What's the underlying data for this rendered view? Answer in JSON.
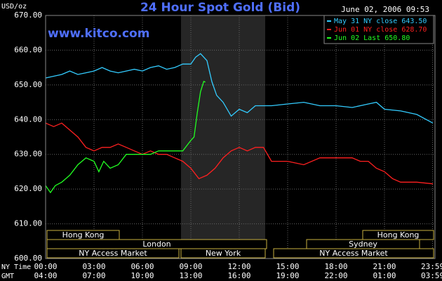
{
  "chart_data": {
    "type": "line",
    "title": "24 Hour Spot Gold (Bid)",
    "y_label": "USD/oz",
    "watermark": "www.kitco.com",
    "timestamp": "June 02, 2006 09:53",
    "x_row_labels": [
      "NY Time",
      "GMT"
    ],
    "sessions": [
      "Hong Kong",
      "London",
      "NY Access Market",
      "New York",
      "Hong Kong",
      "Sydney",
      "NY Access Market"
    ],
    "xlim": [
      0,
      24
    ],
    "xticks": [
      {
        "value": 0,
        "label": "00:00"
      },
      {
        "value": 3,
        "label": "03:00"
      },
      {
        "value": 6,
        "label": "06:00"
      },
      {
        "value": 9,
        "label": "09:00"
      },
      {
        "value": 12,
        "label": "12:00"
      },
      {
        "value": 15,
        "label": "15:00"
      },
      {
        "value": 18,
        "label": "18:00"
      },
      {
        "value": 21,
        "label": "21:00"
      },
      {
        "value": 23.98,
        "label": "23:59"
      }
    ],
    "x2ticks": [
      {
        "value": 0,
        "label": "04:00"
      },
      {
        "value": 3,
        "label": "07:00"
      },
      {
        "value": 6,
        "label": "10:00"
      },
      {
        "value": 9,
        "label": "13:00"
      },
      {
        "value": 12,
        "label": "16:00"
      },
      {
        "value": 15,
        "label": "19:00"
      },
      {
        "value": 18,
        "label": "22:00"
      },
      {
        "value": 21,
        "label": "01:00"
      },
      {
        "value": 23.98,
        "label": "03:59"
      }
    ],
    "ylim": [
      600,
      670
    ],
    "yticks": [
      {
        "value": 600,
        "label": "600.00"
      },
      {
        "value": 610,
        "label": "610.00"
      },
      {
        "value": 620,
        "label": "620.00"
      },
      {
        "value": 630,
        "label": "630.00"
      },
      {
        "value": 640,
        "label": "640.00"
      },
      {
        "value": 650,
        "label": "650.00"
      },
      {
        "value": 660,
        "label": "660.00"
      },
      {
        "value": 670,
        "label": "670.00"
      }
    ],
    "grid": true,
    "series": [
      {
        "name": "May 31 NY close 643.50",
        "color": "#33ccff",
        "x": [
          0,
          0.5,
          1,
          1.5,
          2,
          2.5,
          3,
          3.5,
          4,
          4.5,
          5,
          5.5,
          6,
          6.5,
          7,
          7.5,
          8,
          8.5,
          9,
          9.3,
          9.6,
          10,
          10.3,
          10.6,
          11,
          11.5,
          12,
          12.5,
          13,
          14,
          15,
          16,
          17,
          18,
          19,
          20,
          20.5,
          21,
          22,
          23,
          24
        ],
        "values": [
          652,
          652.5,
          653,
          654,
          653,
          653.5,
          654,
          655,
          654,
          653.5,
          654,
          654.5,
          654,
          655,
          655.5,
          654.5,
          655,
          656,
          656,
          658,
          659,
          657,
          651,
          647,
          645,
          641,
          643,
          642,
          644,
          644,
          644.5,
          645,
          644,
          644,
          643.5,
          644.5,
          645,
          643,
          642.5,
          641.5,
          639
        ]
      },
      {
        "name": "Jun 01 NY close 628.70",
        "color": "#ff2020",
        "x": [
          0,
          0.5,
          1,
          1.5,
          2,
          2.5,
          3,
          3.5,
          4,
          4.5,
          5,
          5.5,
          6,
          6.5,
          7,
          7.5,
          8,
          8.5,
          9,
          9.5,
          10,
          10.5,
          11,
          11.5,
          12,
          12.5,
          13,
          13.5,
          14,
          15,
          16,
          17,
          18,
          19,
          19.5,
          20,
          20.5,
          21,
          21.5,
          22,
          23,
          24
        ],
        "values": [
          639,
          638,
          639,
          637,
          635,
          632,
          631,
          632,
          632,
          633,
          632,
          631,
          630,
          631,
          630,
          630,
          629,
          628,
          626,
          623,
          624,
          626,
          629,
          631,
          632,
          631,
          632,
          632,
          628,
          628,
          627,
          629,
          629,
          629,
          628,
          628,
          626,
          625,
          623,
          622,
          622,
          621.5
        ]
      },
      {
        "name": "Jun 02 Last 650.80",
        "color": "#22ff22",
        "x": [
          0,
          0.3,
          0.6,
          1,
          1.5,
          2,
          2.5,
          3,
          3.3,
          3.6,
          4,
          4.5,
          5,
          5.5,
          6,
          6.5,
          7,
          7.5,
          8,
          8.5,
          9,
          9.2,
          9.4,
          9.6,
          9.8,
          9.9
        ],
        "values": [
          621,
          619,
          621,
          622,
          624,
          627,
          629,
          628,
          625,
          628,
          626,
          627,
          630,
          630,
          630,
          630,
          631,
          631,
          631,
          631,
          634,
          635,
          642,
          648,
          651,
          650.8
        ]
      }
    ]
  }
}
